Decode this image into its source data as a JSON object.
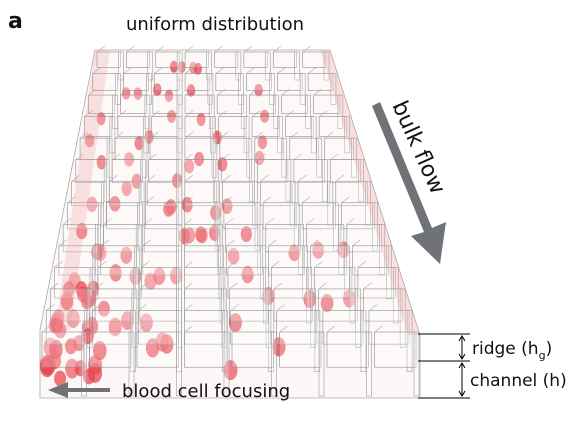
{
  "panel_label": "a",
  "labels": {
    "top": "uniform distribution",
    "flow": "bulk flow",
    "ridge": {
      "text": "ridge (h",
      "sub": "g",
      "tail": ")"
    },
    "channel": "channel (h)",
    "bottom": "blood cell focusing"
  }
}
